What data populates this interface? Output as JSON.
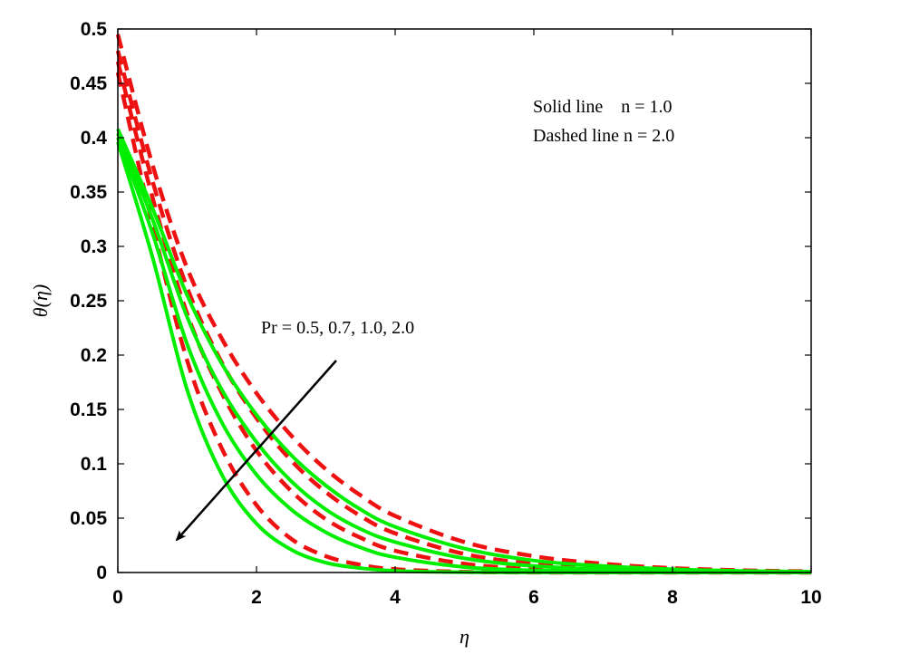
{
  "chart_data": {
    "type": "line",
    "title": "",
    "xlabel": "η",
    "ylabel": "θ(η)",
    "xlim": [
      0,
      10
    ],
    "ylim": [
      0,
      0.5
    ],
    "xticks": [
      0,
      2,
      4,
      6,
      8,
      10
    ],
    "yticks": [
      0,
      0.05,
      0.1,
      0.15,
      0.2,
      0.25,
      0.3,
      0.35,
      0.4,
      0.45,
      0.5
    ],
    "ytick_labels": [
      "0",
      "0.05",
      "0.1",
      "0.15",
      "0.2",
      "0.25",
      "0.3",
      "0.35",
      "0.4",
      "0.45",
      "0.5"
    ],
    "xtick_labels": [
      "0",
      "2",
      "4",
      "6",
      "8",
      "10"
    ],
    "grid": false,
    "legend_lines": [
      "Solid line    n = 1.0",
      "Dashed line n = 2.0"
    ],
    "annotation": "Pr = 0.5, 0.7, 1.0, 2.0",
    "arrow": {
      "from": [
        3.15,
        0.195
      ],
      "to": [
        0.85,
        0.03
      ]
    },
    "colors": {
      "solid": "#00ee00",
      "dashed": "#ee1111"
    },
    "x": [
      0,
      0.5,
      1,
      1.5,
      2,
      2.5,
      3,
      3.5,
      4,
      5,
      6,
      7,
      8,
      9,
      10
    ],
    "series": [
      {
        "style": "solid",
        "values": [
          0.408,
          0.335,
          0.255,
          0.192,
          0.145,
          0.108,
          0.08,
          0.058,
          0.042,
          0.022,
          0.011,
          0.006,
          0.003,
          0.0015,
          0.0008
        ]
      },
      {
        "style": "solid",
        "values": [
          0.404,
          0.325,
          0.235,
          0.168,
          0.12,
          0.084,
          0.058,
          0.04,
          0.028,
          0.013,
          0.006,
          0.003,
          0.0015,
          0.0007,
          0.0003
        ]
      },
      {
        "style": "solid",
        "values": [
          0.4,
          0.312,
          0.21,
          0.138,
          0.09,
          0.058,
          0.037,
          0.023,
          0.014,
          0.005,
          0.002,
          0.0008,
          0.0003,
          0.0001,
          0
        ]
      },
      {
        "style": "solid",
        "values": [
          0.396,
          0.29,
          0.168,
          0.09,
          0.045,
          0.021,
          0.009,
          0.004,
          0.0015,
          0.0003,
          0.0001,
          0,
          0,
          0,
          0
        ]
      },
      {
        "style": "dashed",
        "values": [
          0.495,
          0.375,
          0.28,
          0.215,
          0.165,
          0.126,
          0.095,
          0.071,
          0.052,
          0.028,
          0.015,
          0.008,
          0.004,
          0.002,
          0.001
        ]
      },
      {
        "style": "dashed",
        "values": [
          0.48,
          0.36,
          0.262,
          0.193,
          0.142,
          0.103,
          0.074,
          0.052,
          0.036,
          0.017,
          0.008,
          0.004,
          0.002,
          0.001,
          0.0005
        ]
      },
      {
        "style": "dashed",
        "values": [
          0.47,
          0.345,
          0.238,
          0.165,
          0.112,
          0.075,
          0.049,
          0.032,
          0.02,
          0.008,
          0.003,
          0.001,
          0.0005,
          0.0002,
          0.0001
        ]
      },
      {
        "style": "dashed",
        "values": [
          0.46,
          0.32,
          0.195,
          0.114,
          0.062,
          0.031,
          0.015,
          0.007,
          0.003,
          0.0006,
          0.0001,
          0,
          0,
          0,
          0
        ]
      }
    ]
  }
}
